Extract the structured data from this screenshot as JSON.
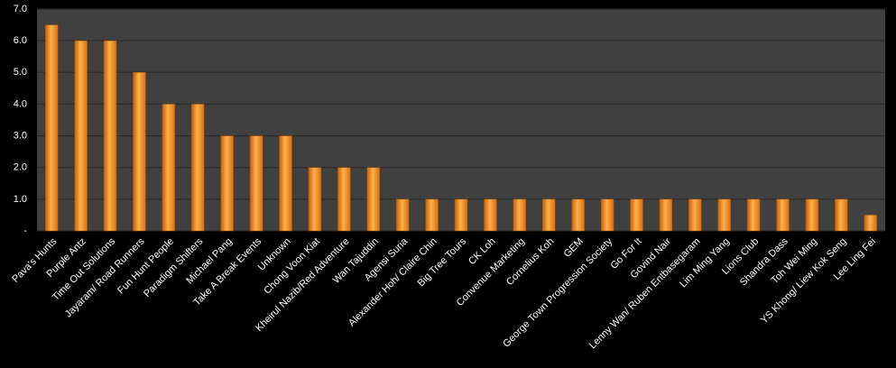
{
  "chart_data": {
    "type": "bar",
    "categories": [
      "Pava's Hunts",
      "Purple Antz",
      "Time Out Solutions",
      "Jayaram/ Road Runners",
      "Fun Hunt People",
      "Paradigm Shifters",
      "Michael Pang",
      "Take A Break Events",
      "Unknown",
      "Chong Voon Kiat",
      "Kheirul Nazib/Red Adventure",
      "Wan Tajuddin",
      "Agensi Suria",
      "Alexander Hoh/ Claire Chin",
      "Big Tree Tours",
      "CK Loh",
      "Convenue Marketing",
      "Cornelius Koh",
      "GEM",
      "George Town Progression Society",
      "Go For It",
      "Govind Nair",
      "Lenny Wan/ Ruben Entbasegaram",
      "Lim Ming Yang",
      "Lions Club",
      "Shandra Dass",
      "Toh Wei Ming",
      "YS Khong/ Liew Kok Seng",
      "Lee Ling Fei"
    ],
    "values": [
      6.5,
      6,
      6,
      5,
      4,
      4,
      3,
      3,
      3,
      2,
      2,
      2,
      1,
      1,
      1,
      1,
      1,
      1,
      1,
      1,
      1,
      1,
      1,
      1,
      1,
      1,
      1,
      1,
      0.5
    ],
    "color": "#f7941d",
    "ylim": [
      0,
      7
    ],
    "yticks": [
      {
        "value": 0,
        "label": "-"
      },
      {
        "value": 1,
        "label": "1.0"
      },
      {
        "value": 2,
        "label": "2.0"
      },
      {
        "value": 3,
        "label": "3.0"
      },
      {
        "value": 4,
        "label": "4.0"
      },
      {
        "value": 5,
        "label": "5.0"
      },
      {
        "value": 6,
        "label": "6.0"
      },
      {
        "value": 7,
        "label": "7.0"
      }
    ],
    "grid": true
  }
}
